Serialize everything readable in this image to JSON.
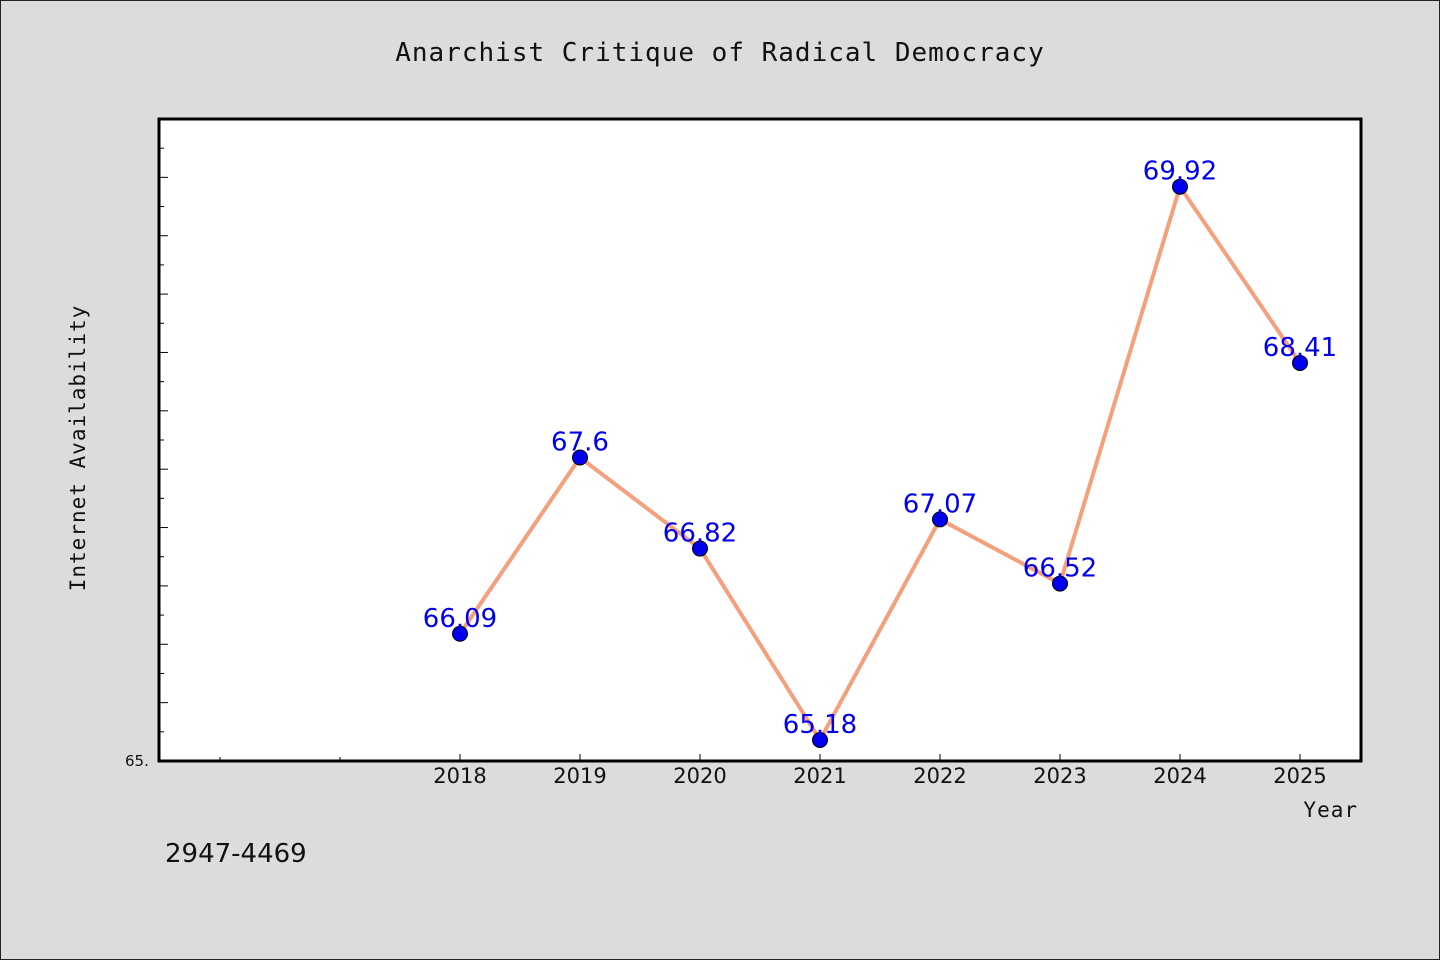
{
  "chart_data": {
    "type": "line",
    "title": "Anarchist Critique of Radical Democracy",
    "xlabel": "Year",
    "ylabel": "Internet Availability",
    "categories": [
      "2018",
      "2019",
      "2020",
      "2021",
      "2022",
      "2023",
      "2024",
      "2025"
    ],
    "series": [
      {
        "values": [
          66.09,
          67.6,
          66.82,
          65.18,
          67.07,
          66.52,
          69.92,
          68.41
        ],
        "labels": [
          "66.09",
          "67.6",
          "66.82",
          "65.18",
          "67.07",
          "66.52",
          "69.92",
          "68.41"
        ]
      }
    ],
    "ylim": [
      65.0,
      70.5
    ],
    "y_tick_label": "65.",
    "grid": false,
    "legend": "none",
    "colors": {
      "line": "#f4a07c",
      "marker": "#0000ee",
      "data_label": "#0000ee",
      "plot_background": "#ffffff",
      "figure_background": "#dcdcdc"
    }
  },
  "footnote": "2947-4469"
}
